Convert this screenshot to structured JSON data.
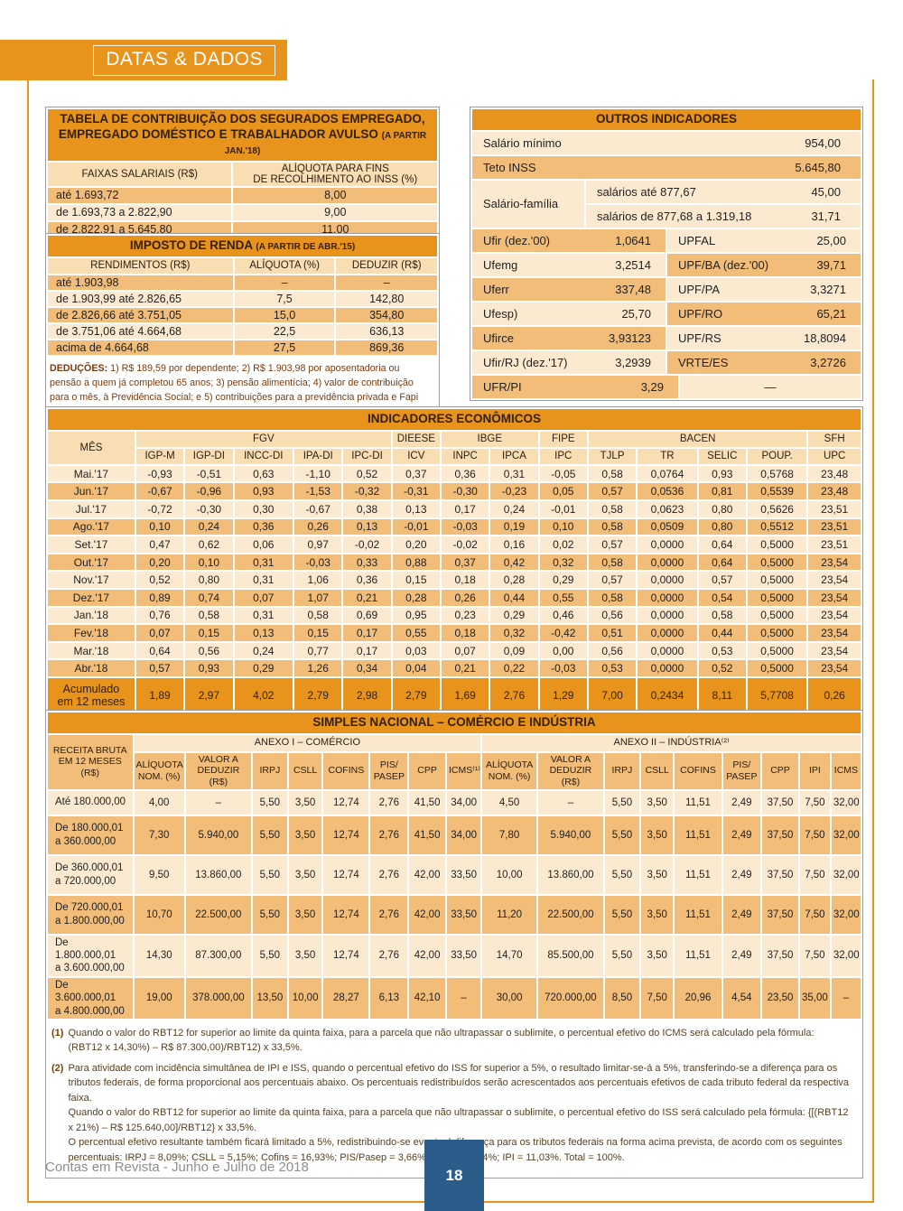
{
  "page": {
    "banner": "DATAS & DADOS",
    "footer_text": "Contas em Revista - Junho e Julho de 2018",
    "page_number": "18",
    "colors": {
      "accent_orange": "#E8941C",
      "row_tan": "#F2BC79",
      "row_cream": "#FCEAD0",
      "page_number_blue": "#2B5C8A"
    }
  },
  "contribuicao": {
    "title_line1": "TABELA DE CONTRIBUIÇÃO DOS SEGURADOS EMPREGADO,",
    "title_line2": "EMPREGADO DOMÉSTICO E TRABALHADOR AVULSO",
    "title_suffix": "(A PARTIR JAN.'18)",
    "col1": "FAIXAS SALARIAIS (R$)",
    "col2": "ALÍQUOTA PARA FINS\nDE RECOLHIMENTO AO INSS (%)",
    "rows": [
      [
        "até 1.693,72",
        "8,00"
      ],
      [
        "de 1.693,73 a 2.822,90",
        "9,00"
      ],
      [
        "de 2.822,91 a 5.645,80",
        "11,00"
      ]
    ]
  },
  "imposto": {
    "title": "IMPOSTO DE RENDA",
    "title_suffix": "(A PARTIR DE ABR.'15)",
    "headers": [
      "RENDIMENTOS (R$)",
      "ALÍQUOTA (%)",
      "DEDUZIR (R$)"
    ],
    "rows": [
      [
        "até 1.903,98",
        "–",
        "–"
      ],
      [
        "de 1.903,99 até 2.826,65",
        "7,5",
        "142,80"
      ],
      [
        "de 2.826,66 até 3.751,05",
        "15,0",
        "354,80"
      ],
      [
        "de 3.751,06 até 4.664,68",
        "22,5",
        "636,13"
      ],
      [
        "acima de 4.664,68",
        "27,5",
        "869,36"
      ]
    ],
    "deducoes_label": "DEDUÇÕES:",
    "deducoes_text": "1) R$ 189,59 por dependente; 2) R$ 1.903,98 por aposentadoria ou pensão a quem já completou 65 anos; 3) pensão alimentícia; 4) valor de contribuição para o mês, à Previdência Social; e 5) contribuições para a previdência privada e Fapi pagas pelo contribuinte."
  },
  "outros": {
    "title": "OUTROS INDICADORES",
    "rows_full": [
      {
        "label": "Salário mínimo",
        "value": "954,00"
      },
      {
        "label": "Teto INSS",
        "value": "5.645,80"
      }
    ],
    "salario_familia": {
      "label": "Salário-família",
      "rows": [
        [
          "salários até 877,67",
          "45,00"
        ],
        [
          "salários de 877,68 a 1.319,18",
          "31,71"
        ]
      ]
    },
    "pairs": [
      [
        "Ufir (dez.'00)",
        "1,0641",
        "UPFAL",
        "25,00"
      ],
      [
        "Ufemg",
        "3,2514",
        "UPF/BA (dez.'00)",
        "39,71"
      ],
      [
        "Uferr",
        "337,48",
        "UPF/PA",
        "3,3271"
      ],
      [
        "Ufesp)",
        "25,70",
        "UPF/RO",
        "65,21"
      ],
      [
        "Ufirce",
        "3,93123",
        "UPF/RS",
        "18,8094"
      ],
      [
        "Ufir/RJ (dez.'17)",
        "3,2939",
        "VRTE/ES",
        "3,2726"
      ],
      [
        "UFR/PI",
        "3,29",
        "",
        "—"
      ]
    ]
  },
  "economicos": {
    "title": "INDICADORES ECONÔMICOS",
    "mes_label": "MÊS",
    "groups": [
      {
        "label": "FGV",
        "span": 5
      },
      {
        "label": "DIEESE",
        "span": 1
      },
      {
        "label": "IBGE",
        "span": 2
      },
      {
        "label": "FIPE",
        "span": 1
      },
      {
        "label": "BACEN",
        "span": 4
      },
      {
        "label": "SFH",
        "span": 1
      }
    ],
    "columns": [
      "IGP-M",
      "IGP-DI",
      "INCC-DI",
      "IPA-DI",
      "IPC-DI",
      "ICV",
      "INPC",
      "IPCA",
      "IPC",
      "TJLP",
      "TR",
      "SELIC",
      "POUP.",
      "UPC"
    ],
    "rows": [
      {
        "mes": "Mai.'17",
        "values": [
          "-0,93",
          "-0,51",
          "0,63",
          "-1,10",
          "0,52",
          "0,37",
          "0,36",
          "0,31",
          "-0,05",
          "0,58",
          "0,0764",
          "0,93",
          "0,5768",
          "23,48"
        ]
      },
      {
        "mes": "Jun.'17",
        "values": [
          "-0,67",
          "-0,96",
          "0,93",
          "-1,53",
          "-0,32",
          "-0,31",
          "-0,30",
          "-0,23",
          "0,05",
          "0,57",
          "0,0536",
          "0,81",
          "0,5539",
          "23,48"
        ]
      },
      {
        "mes": "Jul.'17",
        "values": [
          "-0,72",
          "-0,30",
          "0,30",
          "-0,67",
          "0,38",
          "0,13",
          "0,17",
          "0,24",
          "-0,01",
          "0,58",
          "0,0623",
          "0,80",
          "0,5626",
          "23,51"
        ]
      },
      {
        "mes": "Ago.'17",
        "values": [
          "0,10",
          "0,24",
          "0,36",
          "0,26",
          "0,13",
          "-0,01",
          "-0,03",
          "0,19",
          "0,10",
          "0,58",
          "0,0509",
          "0,80",
          "0,5512",
          "23,51"
        ]
      },
      {
        "mes": "Set.'17",
        "values": [
          "0,47",
          "0,62",
          "0,06",
          "0,97",
          "-0,02",
          "0,20",
          "-0,02",
          "0,16",
          "0,02",
          "0,57",
          "0,0000",
          "0,64",
          "0,5000",
          "23,51"
        ]
      },
      {
        "mes": "Out.'17",
        "values": [
          "0,20",
          "0,10",
          "0,31",
          "-0,03",
          "0,33",
          "0,88",
          "0,37",
          "0,42",
          "0,32",
          "0,58",
          "0,0000",
          "0,64",
          "0,5000",
          "23,54"
        ]
      },
      {
        "mes": "Nov.'17",
        "values": [
          "0,52",
          "0,80",
          "0,31",
          "1,06",
          "0,36",
          "0,15",
          "0,18",
          "0,28",
          "0,29",
          "0,57",
          "0,0000",
          "0,57",
          "0,5000",
          "23,54"
        ]
      },
      {
        "mes": "Dez.'17",
        "values": [
          "0,89",
          "0,74",
          "0,07",
          "1,07",
          "0,21",
          "0,28",
          "0,26",
          "0,44",
          "0,55",
          "0,58",
          "0,0000",
          "0,54",
          "0,5000",
          "23,54"
        ]
      },
      {
        "mes": "Jan.'18",
        "values": [
          "0,76",
          "0,58",
          "0,31",
          "0,58",
          "0,69",
          "0,95",
          "0,23",
          "0,29",
          "0,46",
          "0,56",
          "0,0000",
          "0,58",
          "0,5000",
          "23,54"
        ]
      },
      {
        "mes": "Fev.'18",
        "values": [
          "0,07",
          "0,15",
          "0,13",
          "0,15",
          "0,17",
          "0,55",
          "0,18",
          "0,32",
          "-0,42",
          "0,51",
          "0,0000",
          "0,44",
          "0,5000",
          "23,54"
        ]
      },
      {
        "mes": "Mar.'18",
        "values": [
          "0,64",
          "0,56",
          "0,24",
          "0,77",
          "0,17",
          "0,03",
          "0,07",
          "0,09",
          "0,00",
          "0,56",
          "0,0000",
          "0,53",
          "0,5000",
          "23,54"
        ]
      },
      {
        "mes": "Abr.'18",
        "values": [
          "0,57",
          "0,93",
          "0,29",
          "1,26",
          "0,34",
          "0,04",
          "0,21",
          "0,22",
          "-0,03",
          "0,53",
          "0,0000",
          "0,52",
          "0,5000",
          "23,54"
        ]
      }
    ],
    "acumulado_label": "Acumulado\nem 12 meses",
    "acumulado": [
      "1,89",
      "2,97",
      "4,02",
      "2,79",
      "2,98",
      "2,79",
      "1,69",
      "2,76",
      "1,29",
      "7,00",
      "0,2434",
      "8,11",
      "5,7708",
      "0,26"
    ]
  },
  "simples": {
    "title": "SIMPLES NACIONAL – COMÉRCIO E INDÚSTRIA",
    "receita_label": "RECEITA BRUTA\nEM 12 MESES (R$)",
    "anexo1_label": "ANEXO I – COMÉRCIO",
    "anexo2_label": "ANEXO II – INDÚSTRIA⁽²⁾",
    "anexo1_cols": [
      "ALÍQUOTA\nNOM. (%)",
      "VALOR A\nDEDUZIR (R$)",
      "IRPJ",
      "CSLL",
      "COFINS",
      "PIS/\nPASEP",
      "CPP",
      "ICMS⁽¹⁾"
    ],
    "anexo2_cols": [
      "ALÍQUOTA\nNOM. (%)",
      "VALOR A\nDEDUZIR (R$)",
      "IRPJ",
      "CSLL",
      "COFINS",
      "PIS/\nPASEP",
      "CPP",
      "IPI",
      "ICMS"
    ],
    "rows": [
      {
        "faixa": "Até 180.000,00",
        "a1": [
          "4,00",
          "–",
          "5,50",
          "3,50",
          "12,74",
          "2,76",
          "41,50",
          "34,00"
        ],
        "a2": [
          "4,50",
          "–",
          "5,50",
          "3,50",
          "11,51",
          "2,49",
          "37,50",
          "7,50",
          "32,00"
        ]
      },
      {
        "faixa": "De 180.000,01\na 360.000,00",
        "a1": [
          "7,30",
          "5.940,00",
          "5,50",
          "3,50",
          "12,74",
          "2,76",
          "41,50",
          "34,00"
        ],
        "a2": [
          "7,80",
          "5.940,00",
          "5,50",
          "3,50",
          "11,51",
          "2,49",
          "37,50",
          "7,50",
          "32,00"
        ]
      },
      {
        "faixa": "De 360.000,01\na 720.000,00",
        "a1": [
          "9,50",
          "13.860,00",
          "5,50",
          "3,50",
          "12,74",
          "2,76",
          "42,00",
          "33,50"
        ],
        "a2": [
          "10,00",
          "13.860,00",
          "5,50",
          "3,50",
          "11,51",
          "2,49",
          "37,50",
          "7,50",
          "32,00"
        ]
      },
      {
        "faixa": "De 720.000,01\na 1.800.000,00",
        "a1": [
          "10,70",
          "22.500,00",
          "5,50",
          "3,50",
          "12,74",
          "2,76",
          "42,00",
          "33,50"
        ],
        "a2": [
          "11,20",
          "22.500,00",
          "5,50",
          "3,50",
          "11,51",
          "2,49",
          "37,50",
          "7,50",
          "32,00"
        ]
      },
      {
        "faixa": "De 1.800.000,01\na 3.600.000,00",
        "a1": [
          "14,30",
          "87.300,00",
          "5,50",
          "3,50",
          "12,74",
          "2,76",
          "42,00",
          "33,50"
        ],
        "a2": [
          "14,70",
          "85.500,00",
          "5,50",
          "3,50",
          "11,51",
          "2,49",
          "37,50",
          "7,50",
          "32,00"
        ]
      },
      {
        "faixa": "De 3.600.000,01\na 4.800.000,00",
        "a1": [
          "19,00",
          "378.000,00",
          "13,50",
          "10,00",
          "28,27",
          "6,13",
          "42,10",
          "–"
        ],
        "a2": [
          "30,00",
          "720.000,00",
          "8,50",
          "7,50",
          "20,96",
          "4,54",
          "23,50",
          "35,00",
          "–"
        ]
      }
    ],
    "footnotes": [
      {
        "marker": "(1)",
        "text": "Quando o valor do RBT12 for superior ao limite da quinta faixa, para a parcela que não ultrapassar o sublimite, o percentual efetivo do ICMS será calculado pela fórmula:\n(RBT12 x 14,30%) – R$ 87.300,00)/RBT12) x 33,5%."
      },
      {
        "marker": "(2)",
        "text": "Para atividade com incidência simultânea de IPI e ISS, quando o percentual efetivo do ISS for superior a 5%, o resultado limitar-se-á a 5%, transferindo-se a diferença para os tributos federais, de forma proporcional aos percentuais abaixo. Os percentuais redistribuídos serão acrescentados aos percentuais efetivos de cada tributo federal da respectiva faixa.\nQuando o valor do RBT12 for superior ao limite da quinta faixa, para a parcela que não ultrapassar o sublimite, o percentual efetivo do ISS será calculado pela fórmula: {[(RBT12 x 21%) – R$ 125.640,00]/RBT12} x 33,5%.\nO percentual efetivo resultante também ficará limitado a 5%, redistribuindo-se eventual diferença para os tributos federais na forma acima prevista, de acordo com os seguintes percentuais: IRPJ = 8,09%; CSLL = 5,15%; Cofins = 16,93%; PIS/Pasep = 3,66%; CPP = 55,14%; IPI = 11,03%. Total = 100%."
      }
    ]
  }
}
